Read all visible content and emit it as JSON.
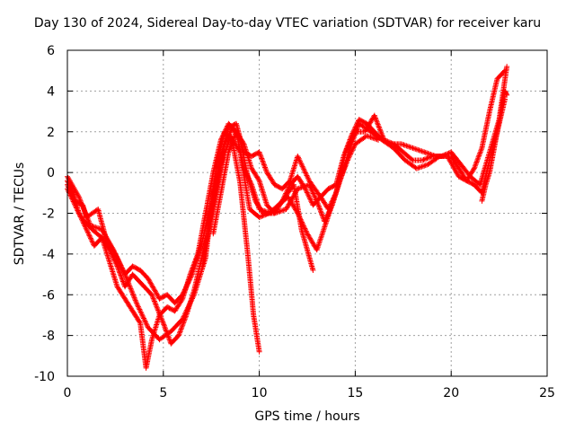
{
  "chart_data": {
    "type": "scatter",
    "title": "Day 130 of 2024, Sidereal Day-to-day VTEC variation (SDTVAR) for receiver karu",
    "xlabel": "GPS time / hours",
    "ylabel": "SDTVAR / TECUs",
    "xlim": [
      0,
      25
    ],
    "ylim": [
      -10,
      6
    ],
    "xticks": [
      0,
      5,
      10,
      15,
      20,
      25
    ],
    "yticks": [
      -10,
      -8,
      -6,
      -4,
      -2,
      0,
      2,
      4,
      6
    ],
    "xtick_labels": [
      "0",
      "5",
      "10",
      "15",
      "20",
      "25"
    ],
    "ytick_labels": [
      "-10",
      "-8",
      "-6",
      "-4",
      "-2",
      "0",
      "2",
      "4",
      "6"
    ],
    "grid": true,
    "marker": "+",
    "color": "#ff0000",
    "series": [
      {
        "x": [
          0.0,
          0.4,
          0.8,
          1.0,
          1.6,
          2.0,
          2.6,
          3.0,
          3.4,
          3.8,
          4.2,
          4.8,
          5.2,
          5.6,
          6.0,
          6.5,
          7.0,
          7.5,
          7.8,
          8.2,
          8.6,
          9.0,
          9.4,
          9.7,
          10.0
        ],
        "y": [
          -0.6,
          -1.4,
          -1.6,
          -2.2,
          -1.8,
          -3.2,
          -4.2,
          -5.0,
          -4.6,
          -4.8,
          -5.2,
          -6.2,
          -6.0,
          -6.4,
          -6.0,
          -5.0,
          -3.5,
          -1.5,
          0.5,
          2.0,
          1.5,
          -0.5,
          -4.0,
          -7.0,
          -8.8
        ]
      },
      {
        "x": [
          0.0,
          0.3,
          0.6,
          0.9,
          1.3,
          1.8,
          2.2,
          2.6,
          3.0,
          3.4,
          3.8,
          4.1,
          4.4,
          4.8,
          5.2,
          5.6,
          6.0,
          6.4,
          6.8,
          7.2,
          7.6,
          8.0,
          8.4,
          8.8,
          9.2,
          9.6,
          10.0,
          10.6,
          11.2,
          11.8,
          12.2,
          12.8
        ],
        "y": [
          -0.4,
          -1.0,
          -2.0,
          -2.4,
          -2.8,
          -3.2,
          -4.4,
          -5.6,
          -6.2,
          -6.8,
          -7.4,
          -9.6,
          -8.2,
          -7.0,
          -6.6,
          -6.8,
          -6.2,
          -5.0,
          -4.0,
          -2.0,
          0.0,
          1.6,
          2.4,
          2.0,
          0.2,
          -0.6,
          -1.8,
          -2.0,
          -1.4,
          -0.6,
          -2.8,
          -4.8
        ]
      },
      {
        "x": [
          0.0,
          0.5,
          1.0,
          1.4,
          1.8,
          2.2,
          2.6,
          3.0,
          3.4,
          3.8,
          4.4,
          5.0,
          5.4,
          5.8,
          6.2,
          6.6,
          7.0,
          7.4,
          7.8,
          8.2,
          8.6,
          9.0,
          9.4,
          9.8,
          10.2,
          10.8,
          11.4,
          12.0,
          12.6,
          13.0,
          13.4,
          13.8,
          14.2,
          14.6,
          15.0,
          15.6,
          16.2
        ],
        "y": [
          -0.8,
          -1.8,
          -2.8,
          -3.6,
          -3.2,
          -3.8,
          -4.6,
          -5.6,
          -5.0,
          -5.4,
          -6.0,
          -7.4,
          -8.4,
          -8.0,
          -7.0,
          -5.8,
          -4.2,
          -2.8,
          -0.8,
          1.4,
          2.2,
          1.6,
          -0.2,
          -1.4,
          -2.0,
          -2.0,
          -1.8,
          -0.8,
          -0.6,
          -1.4,
          -2.4,
          -1.6,
          -0.4,
          0.6,
          1.4,
          1.8,
          1.6
        ]
      },
      {
        "x": [
          0.0,
          0.6,
          1.2,
          1.8,
          2.4,
          3.0,
          3.6,
          4.2,
          4.8,
          5.4,
          6.0,
          6.6,
          7.2,
          7.6,
          8.0,
          8.4,
          8.8,
          9.2,
          9.6,
          10.0,
          10.4,
          10.8,
          11.2,
          11.6,
          12.0,
          12.6,
          13.2,
          13.6,
          14.0,
          14.4,
          14.8,
          15.2,
          15.8,
          16.4,
          17.0,
          17.6,
          18.2,
          18.8,
          19.4,
          20.0,
          20.4,
          20.8,
          21.2,
          21.6,
          22.0,
          22.4,
          22.8
        ],
        "y": [
          -0.2,
          -1.2,
          -2.6,
          -2.8,
          -3.8,
          -5.0,
          -6.4,
          -7.6,
          -8.2,
          -7.8,
          -7.2,
          -6.0,
          -4.2,
          -1.0,
          0.8,
          2.2,
          2.4,
          1.0,
          0.8,
          1.0,
          0.0,
          -0.6,
          -0.8,
          -0.4,
          0.8,
          -0.4,
          -1.2,
          -1.8,
          -1.0,
          0.2,
          1.4,
          2.4,
          2.0,
          1.6,
          1.2,
          0.6,
          0.2,
          0.4,
          0.8,
          0.8,
          0.2,
          -0.4,
          0.2,
          1.2,
          3.0,
          4.6,
          5.0
        ]
      },
      {
        "x": [
          7.6,
          8.0,
          8.4,
          8.8,
          9.2,
          9.6,
          10.0,
          10.4,
          10.8,
          11.2,
          11.6,
          12.0,
          12.4,
          12.8,
          13.2,
          13.6,
          14.0,
          14.4,
          14.8,
          15.2,
          15.6,
          16.0,
          16.4,
          16.8,
          17.4,
          18.0,
          18.6,
          19.2,
          19.8,
          20.4,
          20.8,
          21.2,
          21.6,
          22.0,
          22.4,
          22.8
        ],
        "y": [
          -3.0,
          -1.0,
          1.0,
          2.0,
          1.4,
          0.2,
          -0.4,
          -1.6,
          -2.0,
          -1.4,
          -0.6,
          -0.2,
          -0.8,
          -1.6,
          -1.2,
          -0.8,
          -0.6,
          0.8,
          1.8,
          2.6,
          2.4,
          2.0,
          1.6,
          1.4,
          1.4,
          1.2,
          1.0,
          0.8,
          0.8,
          -0.2,
          -0.4,
          -0.6,
          -1.0,
          0.6,
          2.0,
          3.6
        ]
      },
      {
        "x": [
          7.0,
          7.5,
          8.0,
          8.5,
          9.0,
          9.5,
          10.0,
          10.5,
          11.0,
          11.5,
          12.0,
          12.5,
          13.0,
          13.5,
          14.0,
          14.5,
          15.0,
          15.5,
          16.0,
          16.5,
          17.0,
          17.5,
          18.0,
          18.5,
          19.0,
          19.5,
          20.0,
          20.5,
          21.0,
          21.5,
          22.0,
          22.5,
          22.9
        ],
        "y": [
          -4.8,
          -2.0,
          0.4,
          1.8,
          1.0,
          -1.8,
          -2.2,
          -2.0,
          -1.6,
          -1.2,
          -2.0,
          -3.0,
          -3.8,
          -2.4,
          -1.0,
          1.0,
          2.0,
          2.0,
          2.8,
          1.6,
          1.4,
          1.0,
          0.6,
          0.6,
          0.8,
          0.8,
          1.0,
          0.4,
          -0.2,
          -0.6,
          1.0,
          2.6,
          5.2
        ]
      },
      {
        "x": [
          21.6,
          21.8,
          22.0,
          22.2,
          22.4,
          22.6,
          22.8,
          22.9
        ],
        "y": [
          -1.4,
          -0.6,
          0.0,
          1.0,
          2.0,
          3.0,
          4.0,
          3.8
        ]
      }
    ]
  }
}
